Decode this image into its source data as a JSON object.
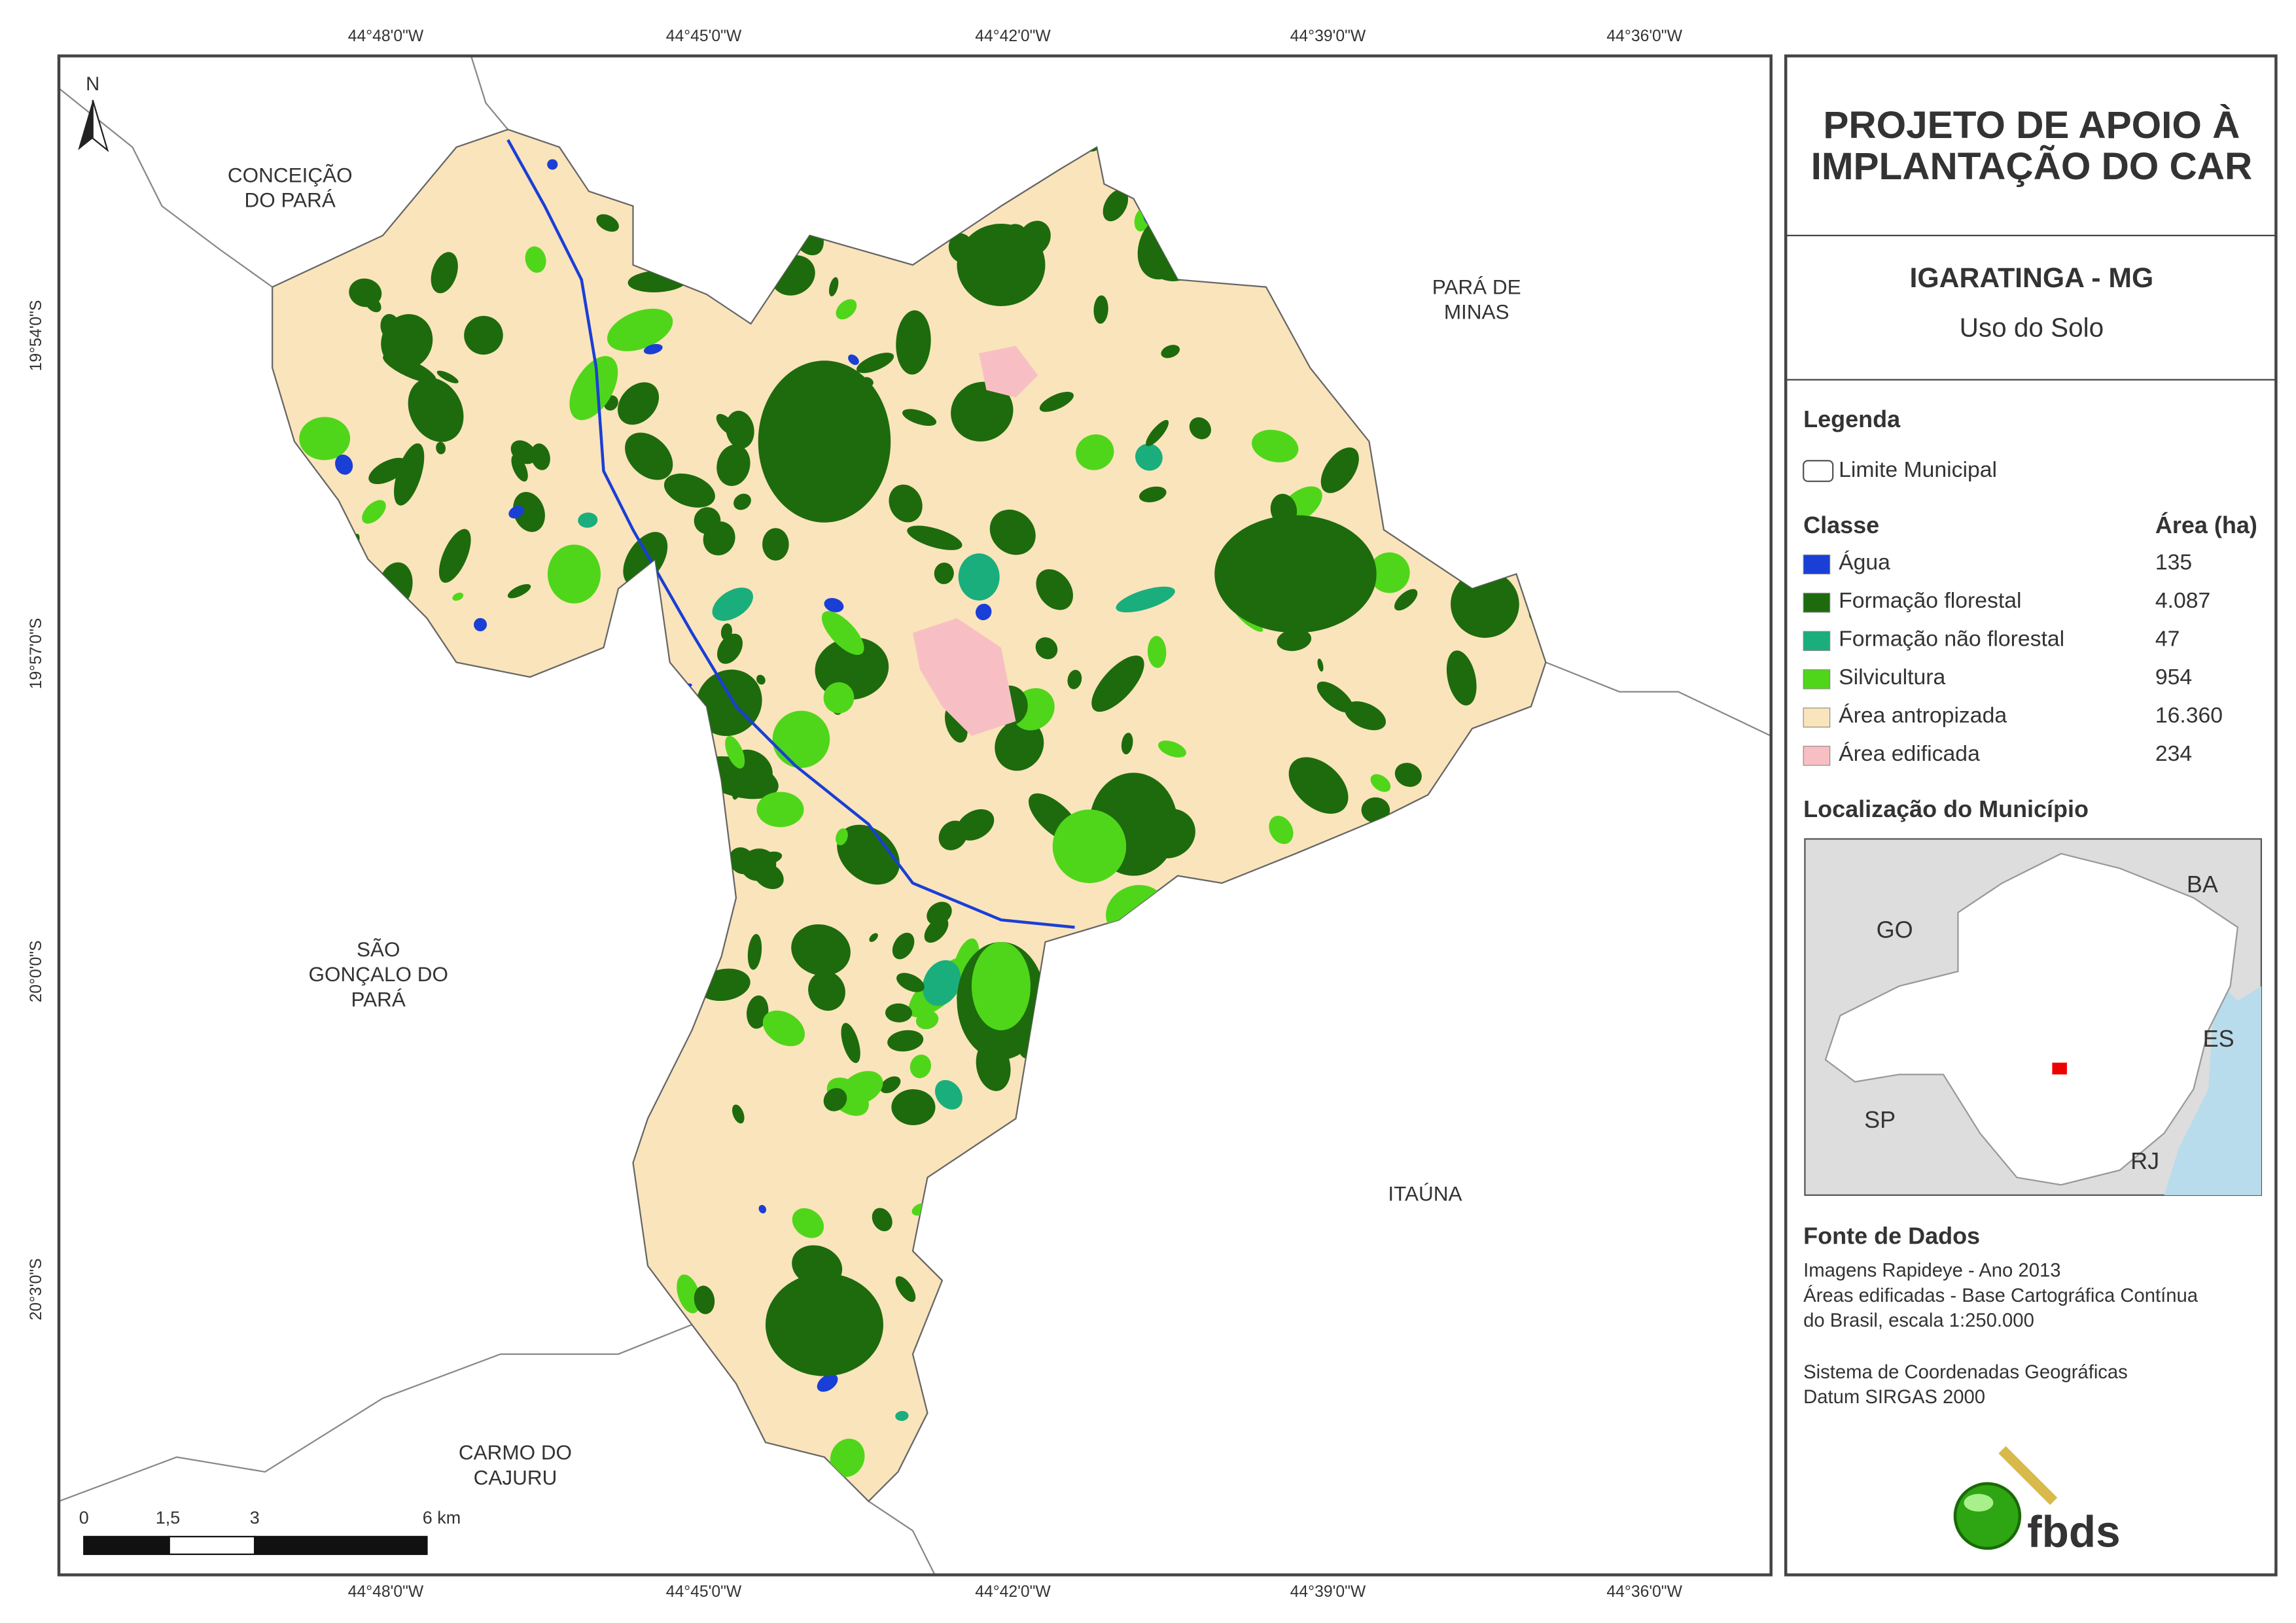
{
  "longitudes": [
    "44°48'0\"W",
    "44°45'0\"W",
    "44°42'0\"W",
    "44°39'0\"W",
    "44°36'0\"W"
  ],
  "latitudes": [
    "19°54'0\"S",
    "19°57'0\"S",
    "20°0'0\"S",
    "20°3'0\"S"
  ],
  "north": "N",
  "places": [
    [
      "CONCEIÇÃO",
      "DO PARÁ"
    ],
    [
      "PARÁ DE",
      "MINAS"
    ],
    [
      "SÃO",
      "GONÇALO DO",
      "PARÁ"
    ],
    [
      "ITAÚNA"
    ],
    [
      "CARMO DO",
      "CAJURU"
    ]
  ],
  "scale": [
    "0",
    "1,5",
    "3",
    "6 km"
  ],
  "panel": {
    "title": [
      "PROJETO DE APOIO À",
      "IMPLANTAÇÃO DO CAR"
    ],
    "municipality": "IGARATINGA - MG",
    "theme": "Uso do Solo",
    "legend_title": "Legenda",
    "boundary": "Limite Municipal",
    "class_header": "Classe",
    "area_header": "Área (ha)",
    "classes": [
      {
        "name": "Água",
        "area": "135",
        "color": "#1a3fd6"
      },
      {
        "name": "Formação florestal",
        "area": "4.087",
        "color": "#1d6b0d"
      },
      {
        "name": "Formação não florestal",
        "area": "47",
        "color": "#1aae7c"
      },
      {
        "name": "Silvicultura",
        "area": "954",
        "color": "#4fd61a"
      },
      {
        "name": "Área antropizada",
        "area": "16.360",
        "color": "#fae4bb"
      },
      {
        "name": "Área edificada",
        "area": "234",
        "color": "#f7bfc4"
      }
    ],
    "location_title": "Localização do Município",
    "states": [
      "GO",
      "BA",
      "ES",
      "SP",
      "RJ"
    ],
    "source_title": "Fonte de Dados",
    "sources": [
      "Imagens Rapideye - Ano 2013",
      "Áreas edificadas - Base Cartográfica Contínua",
      "do Brasil, escala 1:250.000",
      "Sistema de Coordenadas Geográficas",
      "Datum SIRGAS 2000"
    ],
    "logo": "fbds"
  }
}
